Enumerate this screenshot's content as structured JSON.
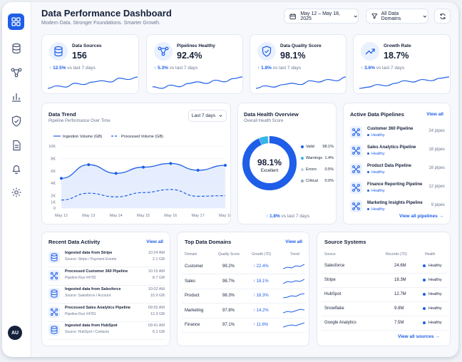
{
  "header": {
    "title": "Data Performance Dashboard",
    "subtitle": "Modern Data. Stronger Foundations. Smarter Growth.",
    "date_range": "May 12 – May 18, 2025",
    "domains_filter": "All Data Domains"
  },
  "sidebar": {
    "avatar": "AU"
  },
  "kpis": [
    {
      "label": "Data Sources",
      "value": "156",
      "delta": "12.5%",
      "period": "vs last 7 days",
      "spark": [
        4,
        5,
        4.5,
        6,
        5.5,
        6.5,
        7,
        6.5,
        8,
        7.5,
        8.5
      ]
    },
    {
      "label": "Pipelines Healthy",
      "value": "92.4%",
      "delta": "5.3%",
      "period": "vs last 7 days",
      "spark": [
        5,
        4.5,
        5.5,
        5,
        6,
        6.5,
        6,
        7,
        6.5,
        7.5,
        8
      ]
    },
    {
      "label": "Data Quality Score",
      "value": "98.1%",
      "delta": "1.8%",
      "period": "vs last 7 days",
      "spark": [
        4,
        5,
        4.5,
        5.5,
        6,
        5.5,
        7,
        6.5,
        7.5,
        7,
        8.5
      ]
    },
    {
      "label": "Growth Rate",
      "value": "18.7%",
      "delta": "3.6%",
      "period": "vs last 7 days",
      "spark": [
        4,
        4.5,
        5.5,
        5,
        6,
        7,
        6.5,
        7.5,
        7,
        8,
        8.5
      ]
    }
  ],
  "trend": {
    "title": "Data Trend",
    "subtitle": "Pipeline Performance Over Time",
    "period_select": "Last 7 days"
  },
  "chart_data": {
    "type": "line",
    "categories": [
      "May 12",
      "May 13",
      "May 14",
      "May 15",
      "May 16",
      "May 17",
      "May 18"
    ],
    "series": [
      {
        "name": "Ingestion Volume (GB)",
        "values": [
          4.8,
          7.0,
          5.6,
          6.6,
          7.2,
          6.1,
          6.9
        ]
      },
      {
        "name": "Processed Volume (GB)",
        "values": [
          1.3,
          2.4,
          1.8,
          2.5,
          3.0,
          1.9,
          2.0
        ]
      }
    ],
    "y_ticks": [
      "0",
      "1K",
      "2K",
      "4K",
      "6K",
      "8K",
      "10K"
    ],
    "ylim": [
      0,
      10
    ],
    "grid": true,
    "legend": "top"
  },
  "health": {
    "title": "Data Health Overview",
    "subtitle": "Overall Health Score",
    "center_value": "98.1%",
    "center_label": "Excellent",
    "delta": "1.8%",
    "period": "vs last 7 days",
    "legend": [
      {
        "label": "Valid",
        "value": "98.1%",
        "color": "#1e5ee8"
      },
      {
        "label": "Warnings",
        "value": "1.4%",
        "color": "#37b4ea"
      },
      {
        "label": "Errors",
        "value": "0.5%",
        "color": "#c5d0e3"
      },
      {
        "label": "Critical",
        "value": "0.0%",
        "color": "#9aa7bf"
      }
    ]
  },
  "pipelines": {
    "title": "Active Data Pipelines",
    "view_all": "View all",
    "footer_link": "View all pipelines",
    "items": [
      {
        "name": "Customer 360 Pipeline",
        "status": "Healthy",
        "count": "24 pipes"
      },
      {
        "name": "Sales Analytics Pipeline",
        "status": "Healthy",
        "count": "18 pipes"
      },
      {
        "name": "Product Data Pipeline",
        "status": "Healthy",
        "count": "16 pipes"
      },
      {
        "name": "Finance Reporting Pipeline",
        "status": "Healthy",
        "count": "12 pipes"
      },
      {
        "name": "Marketing Insights Pipeline",
        "status": "Healthy",
        "count": "9 pipes"
      }
    ]
  },
  "activity": {
    "title": "Recent Data Activity",
    "view_all": "View all",
    "items": [
      {
        "name": "Ingested data from Stripe",
        "source": "Source: Stripe / Payment Events",
        "time": "10:24 AM",
        "size": "2.1 GB"
      },
      {
        "name": "Processed Customer 360 Pipeline",
        "source": "Pipeline Run #4782",
        "time": "10:15 AM",
        "size": "8.7 GB"
      },
      {
        "name": "Ingested data from Salesforce",
        "source": "Source: Salesforce / Account",
        "time": "10:02 AM",
        "size": "15.9 GB"
      },
      {
        "name": "Processed Sales Analytics Pipeline",
        "source": "Pipeline Run #4781",
        "time": "09:55 AM",
        "size": "12.3 GB"
      },
      {
        "name": "Ingested data from HubSpot",
        "source": "Source: HubSpot / Contacts",
        "time": "09:41 AM",
        "size": "6.1 GB"
      }
    ]
  },
  "domains": {
    "title": "Top Data Domains",
    "view_all": "View all",
    "headers": [
      "Domain",
      "Quality Score",
      "Growth (7D)",
      "Trend"
    ],
    "rows": [
      {
        "domain": "Customer",
        "quality": "99.2%",
        "growth": "22.4%"
      },
      {
        "domain": "Sales",
        "quality": "98.7%",
        "growth": "18.1%"
      },
      {
        "domain": "Product",
        "quality": "98.3%",
        "growth": "16.3%"
      },
      {
        "domain": "Marketing",
        "quality": "97.8%",
        "growth": "14.2%"
      },
      {
        "domain": "Finance",
        "quality": "97.1%",
        "growth": "11.6%"
      }
    ]
  },
  "sources": {
    "title": "Source Systems",
    "footer_link": "View all sources",
    "headers": [
      "Source",
      "Records (7D)",
      "Health"
    ],
    "rows": [
      {
        "source": "Salesforce",
        "records": "24.6M",
        "health": "Healthy"
      },
      {
        "source": "Stripe",
        "records": "18.3M",
        "health": "Healthy"
      },
      {
        "source": "HubSpot",
        "records": "12.7M",
        "health": "Healthy"
      },
      {
        "source": "Snowflake",
        "records": "9.8M",
        "health": "Healthy"
      },
      {
        "source": "Google Analytics",
        "records": "7.5M",
        "health": "Healthy"
      }
    ]
  },
  "colors": {
    "accent": "#1e5ee8",
    "light_accent": "#37b4ea",
    "text": "#16213a",
    "muted": "#6b7690"
  }
}
